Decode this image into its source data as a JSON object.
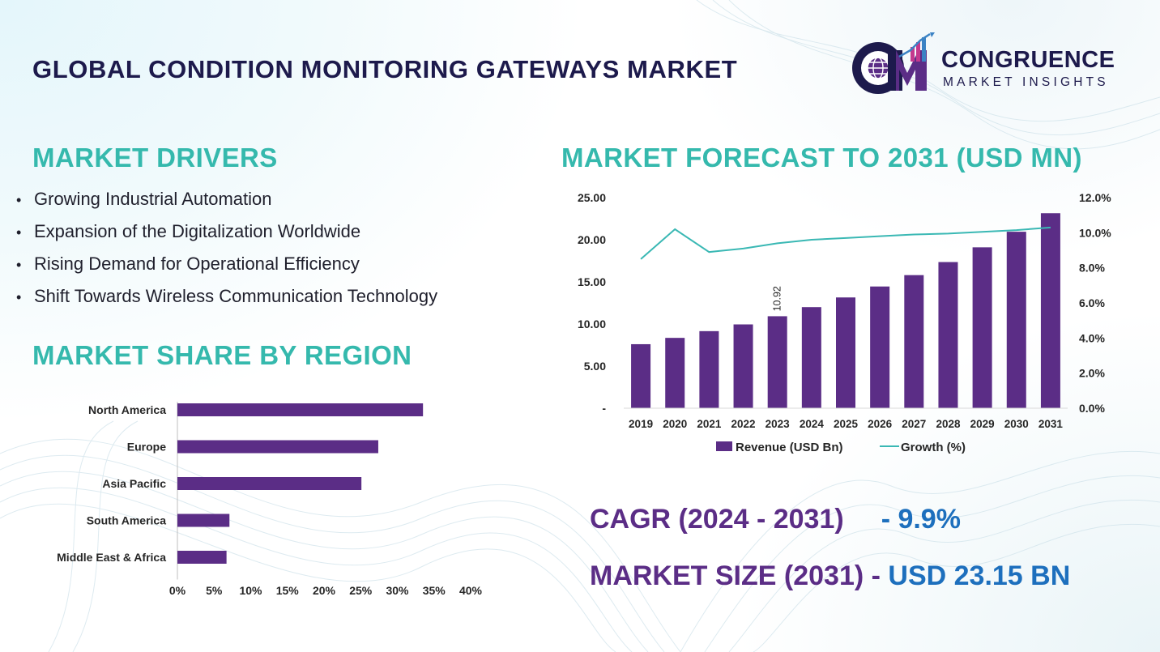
{
  "title": "GLOBAL CONDITION MONITORING GATEWAYS MARKET",
  "logo": {
    "name": "CONGRUENCE",
    "tagline": "MARKET INSIGHTS",
    "colors": {
      "dark": "#1d1a4c",
      "purple": "#5b2d86",
      "magenta": "#c4398e",
      "blue": "#3b82c4"
    }
  },
  "drivers": {
    "heading": "MARKET DRIVERS",
    "items": [
      "Growing Industrial Automation",
      "Expansion of the Digitalization Worldwide",
      "Rising Demand for Operational Efficiency",
      "Shift Towards Wireless Communication Technology"
    ]
  },
  "share_heading": "MARKET SHARE BY REGION",
  "forecast_heading": "MARKET FORECAST TO 2031 (USD MN)",
  "stats": {
    "cagr_label": "CAGR (2024 - 2031)",
    "cagr_value": "- 9.9%",
    "size_label": "MARKET SIZE (2031)",
    "size_sep": " - ",
    "size_value": "USD 23.15 BN"
  },
  "colors": {
    "teal": "#35b9ad",
    "bar": "#5b2d86",
    "navy": "#1d1a4c",
    "blue": "#1d6fbd"
  },
  "chart_data": [
    {
      "type": "bar",
      "orientation": "horizontal",
      "categories": [
        "North America",
        "Europe",
        "Asia Pacific",
        "South America",
        "Middle East & Africa"
      ],
      "values": [
        33.5,
        27.4,
        25.1,
        7.1,
        6.7
      ],
      "xlim": [
        0,
        40
      ],
      "x_ticks": [
        "0%",
        "5%",
        "10%",
        "15%",
        "20%",
        "25%",
        "30%",
        "35%",
        "40%"
      ],
      "grid": false,
      "color": "#5b2d86"
    },
    {
      "type": "bar",
      "categories": [
        "2019",
        "2020",
        "2021",
        "2022",
        "2023",
        "2024",
        "2025",
        "2026",
        "2027",
        "2028",
        "2029",
        "2030",
        "2031"
      ],
      "series": [
        {
          "name": "Revenue (USD Bn)",
          "type": "bar",
          "axis": "left",
          "values": [
            7.6,
            8.35,
            9.15,
            9.95,
            10.92,
            12.0,
            13.15,
            14.45,
            15.8,
            17.35,
            19.1,
            20.95,
            23.15
          ]
        },
        {
          "name": "Growth (%)",
          "type": "line",
          "axis": "right",
          "values": [
            8.5,
            10.2,
            8.9,
            9.1,
            9.4,
            9.6,
            9.7,
            9.8,
            9.9,
            9.95,
            10.05,
            10.15,
            10.3
          ]
        }
      ],
      "data_labels": [
        {
          "category": "2023",
          "text": "10.92"
        }
      ],
      "y_left": {
        "ylim": [
          0,
          25
        ],
        "ticks": [
          "-",
          "5.00",
          "10.00",
          "15.00",
          "20.00",
          "25.00"
        ]
      },
      "y_right": {
        "ylim": [
          0,
          12
        ],
        "ticks": [
          "0.0%",
          "2.0%",
          "4.0%",
          "6.0%",
          "8.0%",
          "10.0%",
          "12.0%"
        ]
      },
      "legend": "bottom",
      "grid": false,
      "colors": {
        "bar": "#5b2d86",
        "line": "#3ab8b4"
      }
    }
  ]
}
